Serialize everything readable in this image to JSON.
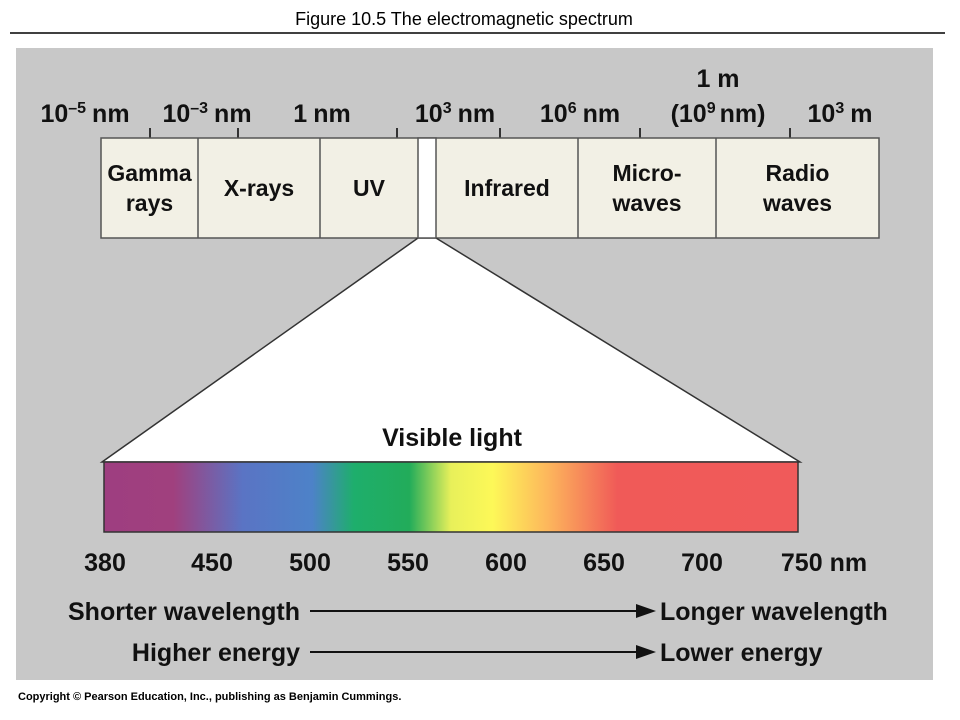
{
  "header": {
    "title": "Figure 10.5  The electromagnetic spectrum"
  },
  "scale": [
    {
      "base": "10",
      "exp": "–5",
      "unit": "nm"
    },
    {
      "base": "10",
      "exp": "–3",
      "unit": "nm"
    },
    {
      "base": "1",
      "exp": null,
      "unit": "nm"
    },
    {
      "base": "10",
      "exp": "3",
      "unit": "nm"
    },
    {
      "base": "10",
      "exp": "6",
      "unit": "nm"
    },
    {
      "top": "1 m",
      "open": "(10",
      "exp": "9",
      "close": "nm)"
    },
    {
      "base": "10",
      "exp": "3",
      "unit": "m"
    }
  ],
  "bands": [
    {
      "lines": [
        "Gamma",
        "rays"
      ]
    },
    {
      "lines": [
        "X-rays"
      ]
    },
    {
      "lines": [
        "UV"
      ]
    },
    {
      "lines": [
        "Infrared"
      ]
    },
    {
      "lines": [
        "Micro-",
        "waves"
      ]
    },
    {
      "lines": [
        "Radio",
        "waves"
      ]
    }
  ],
  "visible": {
    "title": "Visible light",
    "ticks": [
      "380",
      "450",
      "500",
      "550",
      "600",
      "650",
      "700",
      "750 nm"
    ]
  },
  "arrows": [
    {
      "left": "Shorter wavelength",
      "right": "Longer wavelength"
    },
    {
      "left": "Higher energy",
      "right": "Lower energy"
    }
  ],
  "footer": {
    "copyright": "Copyright © Pearson Education, Inc., publishing as Benjamin Cummings."
  }
}
